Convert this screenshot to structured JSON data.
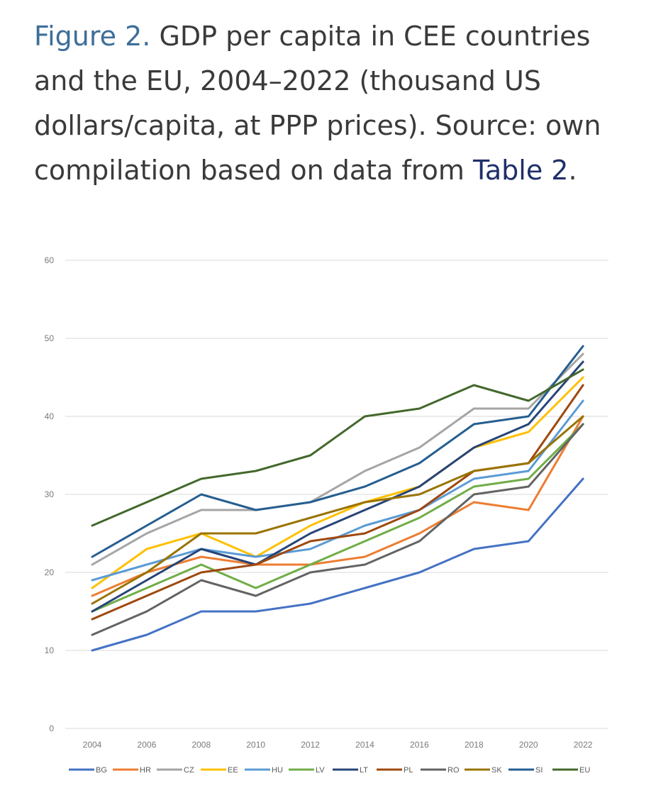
{
  "caption": {
    "figure_label": "Figure 2.",
    "text": " GDP per capita in CEE countries and the EU, 2004–2022 (thousand US dollars/capita, at PPP prices). Source: own compilation based on data from ",
    "link_text": "Table 2",
    "end": "."
  },
  "chart_data": {
    "type": "line",
    "title": "",
    "xlabel": "",
    "ylabel": "",
    "ylim": [
      0,
      60
    ],
    "yticks": [
      0,
      10,
      20,
      30,
      40,
      50,
      60
    ],
    "categories": [
      "2004",
      "2006",
      "2008",
      "2010",
      "2012",
      "2014",
      "2016",
      "2018",
      "2020",
      "2022"
    ],
    "legend_position": "bottom",
    "grid": true,
    "series": [
      {
        "name": "BG",
        "color": "#4472c4",
        "values": [
          10,
          12,
          15,
          15,
          16,
          18,
          20,
          23,
          24,
          32
        ]
      },
      {
        "name": "HR",
        "color": "#ed7d31",
        "values": [
          17,
          20,
          22,
          21,
          21,
          22,
          25,
          29,
          28,
          40
        ]
      },
      {
        "name": "CZ",
        "color": "#a5a5a5",
        "values": [
          21,
          25,
          28,
          28,
          29,
          33,
          36,
          41,
          41,
          48
        ]
      },
      {
        "name": "EE",
        "color": "#ffc000",
        "values": [
          18,
          23,
          25,
          22,
          26,
          29,
          31,
          36,
          38,
          45
        ]
      },
      {
        "name": "HU",
        "color": "#5b9bd5",
        "values": [
          19,
          21,
          23,
          22,
          23,
          26,
          28,
          32,
          33,
          42
        ]
      },
      {
        "name": "LV",
        "color": "#70ad47",
        "values": [
          15,
          18,
          21,
          18,
          21,
          24,
          27,
          31,
          32,
          39
        ]
      },
      {
        "name": "LT",
        "color": "#264478",
        "values": [
          15,
          19,
          23,
          21,
          25,
          28,
          31,
          36,
          39,
          47
        ]
      },
      {
        "name": "PL",
        "color": "#9e480e",
        "values": [
          14,
          17,
          20,
          21,
          24,
          25,
          28,
          33,
          34,
          44
        ]
      },
      {
        "name": "RO",
        "color": "#636363",
        "values": [
          12,
          15,
          19,
          17,
          20,
          21,
          24,
          30,
          31,
          39
        ]
      },
      {
        "name": "SK",
        "color": "#997300",
        "values": [
          16,
          20,
          25,
          25,
          27,
          29,
          30,
          33,
          34,
          40
        ]
      },
      {
        "name": "SI",
        "color": "#255e91",
        "values": [
          22,
          26,
          30,
          28,
          29,
          31,
          34,
          39,
          40,
          49
        ]
      },
      {
        "name": "EU",
        "color": "#43682b",
        "values": [
          26,
          29,
          32,
          33,
          35,
          40,
          41,
          44,
          42,
          46
        ]
      }
    ]
  }
}
